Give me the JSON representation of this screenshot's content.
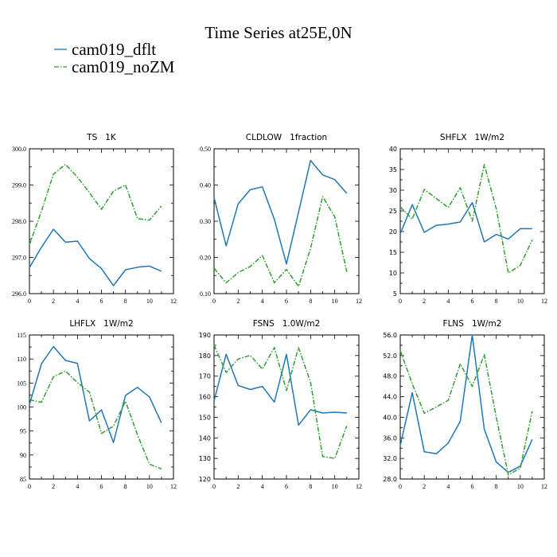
{
  "figure": {
    "title": "Time Series at25E,0N",
    "legend": [
      {
        "name": "cam019_dflt",
        "color": "#1f77b4",
        "dash": "solid"
      },
      {
        "name": "cam019_noZM",
        "color": "#2ca02c",
        "dash": "dashdot"
      }
    ],
    "legend_placement": "top-left"
  },
  "chart_data": [
    {
      "type": "line",
      "title": "TS   1K",
      "xlim": [
        0,
        12
      ],
      "xticks": [
        0,
        2,
        4,
        6,
        8,
        10,
        12
      ],
      "ylim": [
        296.0,
        300.0
      ],
      "yticks": [
        "296.0",
        "297.0",
        "298.0",
        "299.0",
        "300.0"
      ],
      "x": [
        0,
        1,
        2,
        3,
        4,
        5,
        6,
        7,
        8,
        9,
        10,
        11
      ],
      "series": [
        {
          "name": "cam019_dflt",
          "values": [
            296.72,
            297.28,
            297.78,
            297.42,
            297.45,
            296.97,
            296.69,
            296.22,
            296.66,
            296.73,
            296.76,
            296.62
          ]
        },
        {
          "name": "cam019_noZM",
          "values": [
            297.35,
            298.28,
            299.3,
            299.57,
            299.22,
            298.79,
            298.33,
            298.83,
            299.0,
            298.07,
            298.03,
            298.42
          ]
        }
      ]
    },
    {
      "type": "line",
      "title": "CLDLOW   1fraction",
      "xlim": [
        0,
        12
      ],
      "xticks": [
        0,
        2,
        4,
        6,
        8,
        10,
        12
      ],
      "ylim": [
        0.1,
        0.5
      ],
      "yticks": [
        "0.10",
        "0.20",
        "0.30",
        "0.40",
        "0.50"
      ],
      "x": [
        0,
        1,
        2,
        3,
        4,
        5,
        6,
        7,
        8,
        9,
        10,
        11
      ],
      "series": [
        {
          "name": "cam019_dflt",
          "values": [
            0.365,
            0.232,
            0.348,
            0.387,
            0.395,
            0.305,
            0.182,
            0.325,
            0.468,
            0.428,
            0.415,
            0.377
          ]
        },
        {
          "name": "cam019_noZM",
          "values": [
            0.17,
            0.13,
            0.158,
            0.175,
            0.205,
            0.13,
            0.167,
            0.12,
            0.225,
            0.368,
            0.312,
            0.16
          ]
        }
      ]
    },
    {
      "type": "line",
      "title": "SHFLX   1W/m2",
      "xlim": [
        0,
        12
      ],
      "xticks": [
        0,
        2,
        4,
        6,
        8,
        10,
        12
      ],
      "ylim": [
        5,
        40
      ],
      "yticks": [
        "5",
        "10",
        "15",
        "20",
        "25",
        "30",
        "35",
        "40"
      ],
      "x": [
        0,
        1,
        2,
        3,
        4,
        5,
        6,
        7,
        8,
        9,
        10,
        11
      ],
      "series": [
        {
          "name": "cam019_dflt",
          "values": [
            19.5,
            26.5,
            19.8,
            21.5,
            21.8,
            22.3,
            27.0,
            17.5,
            19.3,
            18.2,
            20.7,
            20.7
          ]
        },
        {
          "name": "cam019_noZM",
          "values": [
            26.0,
            23.0,
            30.2,
            28.0,
            25.8,
            30.6,
            22.5,
            36.2,
            25.5,
            10.0,
            11.8,
            18.0
          ]
        }
      ]
    },
    {
      "type": "line",
      "title": "LHFLX   1W/m2",
      "xlim": [
        0,
        12
      ],
      "xticks": [
        0,
        2,
        4,
        6,
        8,
        10,
        12
      ],
      "ylim": [
        85,
        115
      ],
      "yticks": [
        "85",
        "90",
        "95",
        "100",
        "105",
        "110",
        "115"
      ],
      "x": [
        0,
        1,
        2,
        3,
        4,
        5,
        6,
        7,
        8,
        9,
        10,
        11
      ],
      "series": [
        {
          "name": "cam019_dflt",
          "values": [
            100.5,
            109.0,
            112.6,
            109.7,
            109.1,
            97.1,
            99.4,
            92.6,
            102.4,
            104.1,
            102.1,
            96.7
          ]
        },
        {
          "name": "cam019_noZM",
          "values": [
            101.5,
            101.0,
            106.3,
            107.5,
            105.1,
            103.1,
            94.5,
            96.0,
            101.2,
            94.2,
            88.1,
            87.1
          ]
        }
      ]
    },
    {
      "type": "line",
      "title": "FSNS   1.0W/m2",
      "xlim": [
        0,
        12
      ],
      "xticks": [
        0,
        2,
        4,
        6,
        8,
        10,
        12
      ],
      "ylim": [
        120,
        190
      ],
      "yticks": [
        "120",
        "130",
        "140",
        "150",
        "160",
        "170",
        "180",
        "190"
      ],
      "x": [
        0,
        1,
        2,
        3,
        4,
        5,
        6,
        7,
        8,
        9,
        10,
        11
      ],
      "series": [
        {
          "name": "cam019_dflt",
          "values": [
            158.0,
            180.6,
            165.5,
            163.5,
            165.0,
            157.4,
            180.6,
            146.2,
            153.7,
            152.1,
            152.5,
            152.1
          ]
        },
        {
          "name": "cam019_noZM",
          "values": [
            185.1,
            171.8,
            178.3,
            180.1,
            173.5,
            183.9,
            163.0,
            183.9,
            167.0,
            131.0,
            130.0,
            145.8
          ]
        }
      ]
    },
    {
      "type": "line",
      "title": "FLNS   1W/m2",
      "xlim": [
        0,
        12
      ],
      "xticks": [
        0,
        2,
        4,
        6,
        8,
        10,
        12
      ],
      "ylim": [
        28.0,
        56.0
      ],
      "yticks": [
        "28.0",
        "32.0",
        "36.0",
        "40.0",
        "44.0",
        "48.0",
        "52.0",
        "56.0"
      ],
      "x": [
        0,
        1,
        2,
        3,
        4,
        5,
        6,
        7,
        8,
        9,
        10,
        11
      ],
      "series": [
        {
          "name": "cam019_dflt",
          "values": [
            34.5,
            44.8,
            33.3,
            32.9,
            35.0,
            39.2,
            56.0,
            37.7,
            31.3,
            29.3,
            30.5,
            35.7
          ]
        },
        {
          "name": "cam019_noZM",
          "values": [
            53.0,
            46.5,
            40.8,
            42.0,
            43.3,
            50.4,
            46.0,
            52.2,
            40.0,
            28.8,
            30.1,
            41.2
          ]
        }
      ]
    }
  ]
}
